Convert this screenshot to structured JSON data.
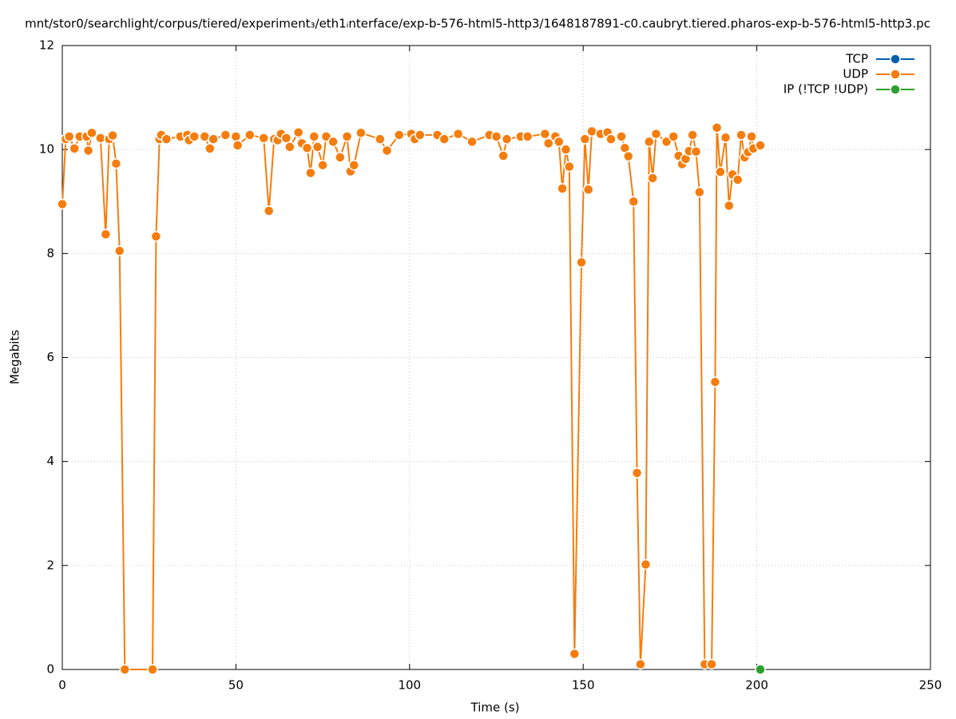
{
  "chart_data": {
    "type": "line",
    "title": "mnt/stor0/searchlight/corpus/tiered/experiment₃/eth1ᵢnterface/exp-b-576-html5-http3/1648187891-c0.caubryt.tiered.pharos-exp-b-576-html5-http3.pc",
    "x_label": "Time (s)",
    "y_label": "Megabits",
    "xlim": [
      0,
      250
    ],
    "xticks": [
      0,
      50,
      100,
      150,
      200,
      250
    ],
    "ylim": [
      0,
      12
    ],
    "yticks": [
      0,
      2,
      4,
      6,
      8,
      10,
      12
    ],
    "grid": true,
    "legend": "top-right",
    "series": [
      {
        "name": "TCP",
        "color": "#0060ad",
        "x": [],
        "values": []
      },
      {
        "name": "UDP",
        "color": "#f47d0e",
        "x": [
          0,
          1,
          2,
          3.5,
          5,
          7,
          7.5,
          8.5,
          11,
          12.5,
          13.5,
          14.5,
          15.5,
          16.5,
          18,
          26,
          27,
          28,
          28.5,
          30,
          34,
          36,
          36.5,
          38,
          41,
          42.5,
          43.5,
          47,
          50,
          50.5,
          54,
          58,
          59.5,
          61,
          62,
          63,
          64.5,
          65.5,
          68,
          69,
          70.5,
          71.5,
          72.5,
          73.5,
          75,
          76,
          78,
          80,
          82,
          83,
          84,
          86,
          91.5,
          93.5,
          97,
          100.5,
          101.5,
          103,
          108,
          110,
          114,
          118,
          123,
          125,
          127,
          128,
          132,
          134,
          139,
          140,
          142,
          143,
          144,
          145,
          146,
          147.5,
          149.5,
          150.5,
          151.5,
          152.5,
          155,
          157,
          158,
          161,
          162,
          163,
          164.5,
          165.5,
          166.5,
          168,
          169,
          170,
          171,
          174,
          176,
          177.5,
          178.5,
          179.5,
          180.5,
          181.5,
          182.5,
          183.5,
          185,
          187,
          188,
          188.5,
          189.5,
          191,
          192,
          193,
          194.5,
          195.5,
          196.5,
          197.5,
          198.5,
          199,
          201
        ],
        "values": [
          8.95,
          10.2,
          10.25,
          10.02,
          10.25,
          10.25,
          9.98,
          10.32,
          10.22,
          8.37,
          10.2,
          10.27,
          9.73,
          8.05,
          0,
          0,
          8.33,
          10.2,
          10.28,
          10.2,
          10.25,
          10.28,
          10.18,
          10.25,
          10.25,
          10.02,
          10.2,
          10.28,
          10.25,
          10.08,
          10.28,
          10.22,
          8.82,
          10.2,
          10.18,
          10.3,
          10.22,
          10.05,
          10.33,
          10.12,
          10.03,
          9.55,
          10.25,
          10.05,
          9.7,
          10.25,
          10.15,
          9.85,
          10.25,
          9.58,
          9.7,
          10.32,
          10.2,
          9.98,
          10.28,
          10.3,
          10.2,
          10.28,
          10.28,
          10.2,
          10.3,
          10.15,
          10.28,
          10.25,
          9.88,
          10.2,
          10.25,
          10.25,
          10.3,
          10.12,
          10.25,
          10.15,
          9.25,
          10.0,
          9.67,
          0.3,
          7.83,
          10.2,
          9.23,
          10.35,
          10.3,
          10.33,
          10.2,
          10.25,
          10.03,
          9.87,
          9.0,
          3.78,
          0.1,
          2.02,
          10.15,
          9.45,
          10.3,
          10.15,
          10.25,
          9.88,
          9.72,
          9.82,
          9.97,
          10.28,
          9.96,
          9.18,
          0.1,
          0.1,
          5.53,
          10.42,
          9.57,
          10.23,
          8.92,
          9.52,
          9.42,
          10.28,
          9.85,
          9.95,
          10.25,
          10.02,
          10.08
        ]
      },
      {
        "name": "IP (!TCP  !UDP)",
        "color": "#2ca02c",
        "x": [
          201
        ],
        "values": [
          0
        ]
      }
    ]
  }
}
